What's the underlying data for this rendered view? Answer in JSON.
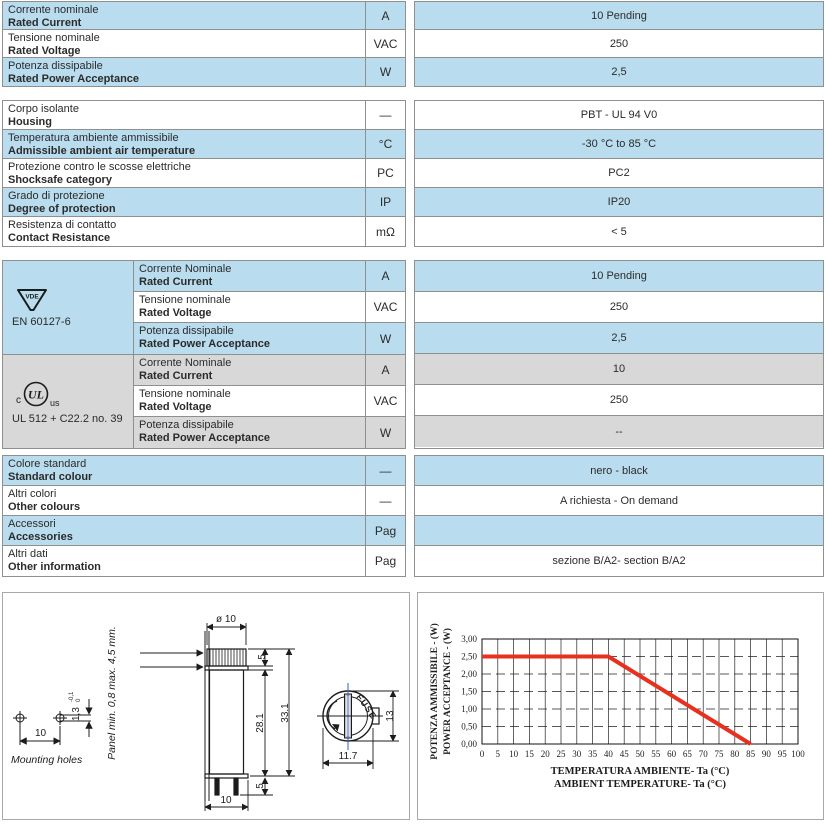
{
  "colors": {
    "row_blue": "#b9ddee",
    "row_gray": "#d8d8d8",
    "table_border": "#8f8f8f",
    "text": "#2b2b2b",
    "chart_line_red": "#e8301f",
    "centerline_blue": "#3a5bbf"
  },
  "spec_sections": [
    {
      "rows": [
        {
          "it": "Corrente nominale",
          "en": "Rated Current",
          "unit": "A",
          "value": "10 Pending",
          "shade": "blue"
        },
        {
          "it": "Tensione nominale",
          "en": "Rated Voltage",
          "unit": "VAC",
          "value": "250",
          "shade": "white"
        },
        {
          "it": "Potenza dissipabile",
          "en": "Rated Power Acceptance",
          "unit": "W",
          "value": "2,5",
          "shade": "blue"
        }
      ]
    },
    {
      "rows": [
        {
          "it": "Corpo isolante",
          "en": "Housing",
          "unit": "—",
          "value": "PBT - UL 94 V0",
          "shade": "white"
        },
        {
          "it": "Temperatura ambiente ammissibile",
          "en": "Admissible ambient air temperature",
          "unit": "°C",
          "value": "-30 °C to 85 °C",
          "shade": "blue"
        },
        {
          "it": "Protezione contro le scosse elettriche",
          "en": "Shocksafe category",
          "unit": "PC",
          "value": "PC2",
          "shade": "white"
        },
        {
          "it": "Grado di protezione",
          "en": "Degree of protection",
          "unit": "IP",
          "value": "IP20",
          "shade": "blue"
        },
        {
          "it": "Resistenza di contatto",
          "en": "Contact Resistance",
          "unit": "mΩ",
          "value": "< 5",
          "shade": "white"
        }
      ]
    },
    {
      "groups": [
        {
          "logo": "vde",
          "logo_text": "VDE",
          "standard": "EN 60127-6",
          "cell_shade": "blue",
          "rows": [
            {
              "it": "Corrente Nominale",
              "en": "Rated Current",
              "unit": "A",
              "value": "10 Pending",
              "shade": "blue"
            },
            {
              "it": "Tensione nominale",
              "en": "Rated Voltage",
              "unit": "VAC",
              "value": "250",
              "shade": "white"
            },
            {
              "it": "Potenza dissipabile",
              "en": "Rated Power Acceptance",
              "unit": "W",
              "value": "2,5",
              "shade": "blue"
            }
          ]
        },
        {
          "logo": "ul",
          "logo_c": "c",
          "logo_main": "UL",
          "logo_us": "us",
          "standard": "UL 512 + C22.2 no. 39",
          "cell_shade": "gray",
          "rows": [
            {
              "it": "Corrente Nominale",
              "en": "Rated Current",
              "unit": "A",
              "value": "10",
              "shade": "gray"
            },
            {
              "it": "Tensione nominale",
              "en": "Rated Voltage",
              "unit": "VAC",
              "value": "250",
              "shade": "white"
            },
            {
              "it": "Potenza dissipabile",
              "en": "Rated Power Acceptance",
              "unit": "W",
              "value": "--",
              "shade": "gray"
            }
          ]
        }
      ]
    },
    {
      "rows": [
        {
          "it": "Colore standard",
          "en": "Standard colour",
          "unit": "—",
          "value": "nero - black",
          "shade": "blue"
        },
        {
          "it": "Altri colori",
          "en": "Other colours",
          "unit": "—",
          "value": "A richiesta - On demand",
          "shade": "white"
        },
        {
          "it": "Accessori",
          "en": "Accessories",
          "unit": "Pag",
          "value": "",
          "shade": "blue"
        },
        {
          "it": "Altri dati",
          "en": "Other information",
          "unit": "Pag",
          "value": "sezione B/A2- section B/A2",
          "shade": "white"
        }
      ]
    }
  ],
  "drawing": {
    "mounting_holes_label": "Mounting holes",
    "holes_pitch": "10",
    "slot_width": "1,3",
    "slot_tol_top": "-0,1",
    "slot_tol_bottom": "0",
    "panel_note": "Panel min. 0,8 max. 4,5 mm.",
    "cap_dia": "ø 10",
    "cap_height": "5",
    "body_height": "28.1",
    "total_height": "33.1",
    "terminal_length": "5",
    "base_width": "10",
    "front_height": "13",
    "front_width": "11.7",
    "fuse_label": "FUSE"
  },
  "chart_data": {
    "type": "line",
    "xlabel_line1": "TEMPERATURA AMBIENTE- Ta (°C)",
    "xlabel_line2": "AMBIENT TEMPERATURE- Ta (°C)",
    "ylabel_line1": "POTENZA AMMISSIBILE - (W)",
    "ylabel_line2": "POWER ACCEPTANCE - (W)",
    "xlim": [
      0,
      100
    ],
    "ylim": [
      0,
      3
    ],
    "x_tick_step": 5,
    "y_tick_step": 0.5,
    "y_tick_labels": [
      "0,00",
      "0,50",
      "1,00",
      "1,50",
      "2,00",
      "2,50",
      "3,00"
    ],
    "grid": true,
    "legend_position": "none",
    "series": [
      {
        "name": "power-acceptance-derating",
        "color": "#e8301f",
        "points": [
          [
            0,
            2.5
          ],
          [
            40,
            2.5
          ],
          [
            85,
            0
          ]
        ]
      }
    ]
  }
}
